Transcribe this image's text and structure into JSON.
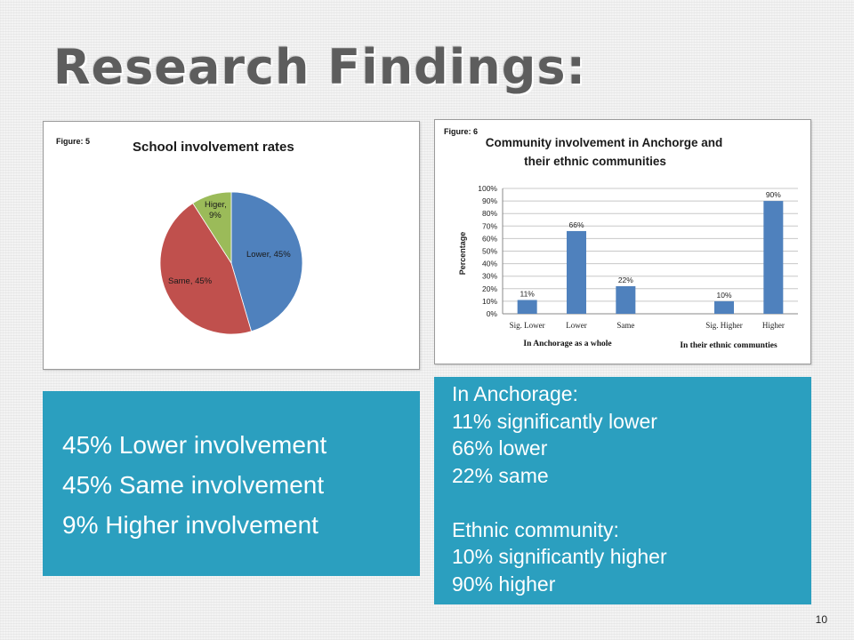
{
  "slide": {
    "title": "Research Findings:",
    "page_number": "10"
  },
  "colors": {
    "pie_blue": "#4f81bd",
    "pie_red": "#c0504d",
    "pie_green": "#9bbb59",
    "bar": "#4f81bd",
    "text_box": "#2b9fbf"
  },
  "chart_data": [
    {
      "type": "pie",
      "figure_label": "Figure: 5",
      "title": "School involvement rates",
      "slices": [
        {
          "label": "Lower, 45%",
          "value": 45
        },
        {
          "label": "Same, 45%",
          "value": 45
        },
        {
          "label_line1": "Higer,",
          "label_line2": "9%",
          "value": 9
        }
      ]
    },
    {
      "type": "bar",
      "figure_label": "Figure: 6",
      "title_line1": "Community involvement in Anchorge and",
      "title_line2": "their ethnic communities",
      "ylabel": "Percentage",
      "ylim": [
        0,
        100
      ],
      "yticks": [
        "0%",
        "10%",
        "20%",
        "30%",
        "40%",
        "50%",
        "60%",
        "70%",
        "80%",
        "90%",
        "100%"
      ],
      "categories": [
        "Sig. Lower",
        "Lower",
        "Same",
        "",
        "Sig. Higher",
        "Higher"
      ],
      "values": [
        11,
        66,
        22,
        null,
        10,
        90
      ],
      "data_labels": [
        "11%",
        "66%",
        "22%",
        "",
        "10%",
        "90%"
      ],
      "groups": [
        "In Anchorage as a whole",
        "In their ethnic communties"
      ],
      "grid": true
    }
  ],
  "summary_left": [
    "45% Lower involvement",
    "45% Same involvement",
    "9% Higher involvement"
  ],
  "summary_right": [
    "In Anchorage:",
    "11% significantly lower",
    "66% lower",
    "22% same",
    "",
    "Ethnic community:",
    "10% significantly higher",
    "90% higher"
  ]
}
